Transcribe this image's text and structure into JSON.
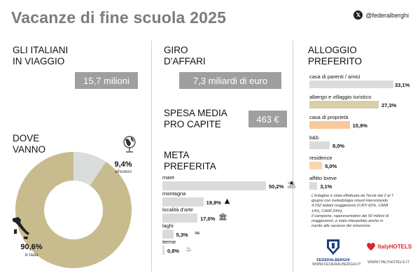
{
  "header": {
    "title": "Vacanze di fine scuola 2025",
    "handle": "@federalberghi"
  },
  "travelers": {
    "heading_line1": "GLI ITALIANI",
    "heading_line2": "IN VIAGGIO",
    "value": "15,7 milioni"
  },
  "turnover": {
    "heading_line1": "GIRO",
    "heading_line2": "D'AFFARI",
    "value": "7,3 miliardi di euro"
  },
  "spending": {
    "heading_line1": "SPESA MEDIA",
    "heading_line2": "PRO CAPITE",
    "value": "463 €"
  },
  "where": {
    "heading_line1": "DOVE",
    "heading_line2": "VANNO"
  },
  "destinations": {
    "heading_line1": "META",
    "heading_line2": "PREFERITA"
  },
  "accommodation": {
    "heading_line1": "ALLOGGIO",
    "heading_line2": "PREFERITO"
  },
  "note": {
    "lines": [
      "L'indagine è stata effettuata da Tecnè dal 2 al 7",
      "giugno con metodologia mixed intervistando",
      "4.032 italiani maggiorenni (CATI 62%, CAMI",
      "14%, CAWI 24%).",
      "Il campione, rappresentativo dei 50 milioni di",
      "maggiorenni, è stato interpellato anche in",
      "merito alle vacanze dei minorenni."
    ]
  },
  "logos": {
    "federalberghi_name": "FEDERALBERGHI",
    "federalberghi_url": "WWW.FEDERALBERGHI.IT",
    "italyhotels_name": "ItalyHOTELS",
    "italyhotels_url": "WWW.ITALYHOTELS.IT"
  },
  "colors": {
    "beige": "#c8bc8f",
    "light_grey": "#dadcdb",
    "dark_grey": "#9f9f9f",
    "peach": "#f8c99a",
    "orange": "#f4a460",
    "light_orange": "#f9d5b0"
  },
  "chart_data": [
    {
      "type": "pie",
      "categories": [
        "in Italia",
        "all'estero"
      ],
      "values": [
        90.6,
        9.4
      ],
      "value_labels": [
        "90,6%",
        "9,4%"
      ],
      "colors": [
        "#c8bc8f",
        "#dadcdb"
      ],
      "icons": [
        "italy-map-icon",
        "globe-icon"
      ]
    },
    {
      "type": "bar",
      "orientation": "horizontal",
      "categories": [
        "mare",
        "montagna",
        "località d'arte",
        "laghi",
        "terme"
      ],
      "values": [
        50.2,
        19.9,
        17.0,
        5.3,
        0.8
      ],
      "value_labels": [
        "50,2%",
        "19,9%",
        "17,0%",
        "5,3%",
        "0,8%"
      ],
      "icons": [
        "beach-umbrella-icon",
        "mountain-icon",
        "monument-icon",
        "lake-icon",
        "spa-icon"
      ],
      "color": "#dadcdb",
      "xlim": [
        0,
        50.2
      ]
    },
    {
      "type": "bar",
      "orientation": "horizontal",
      "categories": [
        "casa di parenti / amici",
        "albergo e villaggio turistico",
        "casa di proprietà",
        "b&b",
        "residence",
        "affitto breve"
      ],
      "values": [
        33.1,
        27.3,
        15.9,
        8.0,
        5.0,
        3.1
      ],
      "value_labels": [
        "33,1%",
        "27,3%",
        "15,9%",
        "8,0%",
        "5,0%",
        "3,1%"
      ],
      "colors": [
        "#dadcdb",
        "#d6cfa8",
        "#f8c99a",
        "#dadcdb",
        "#f9d5b0",
        "#dadcdb"
      ],
      "xlim": [
        0,
        33.1
      ]
    }
  ]
}
